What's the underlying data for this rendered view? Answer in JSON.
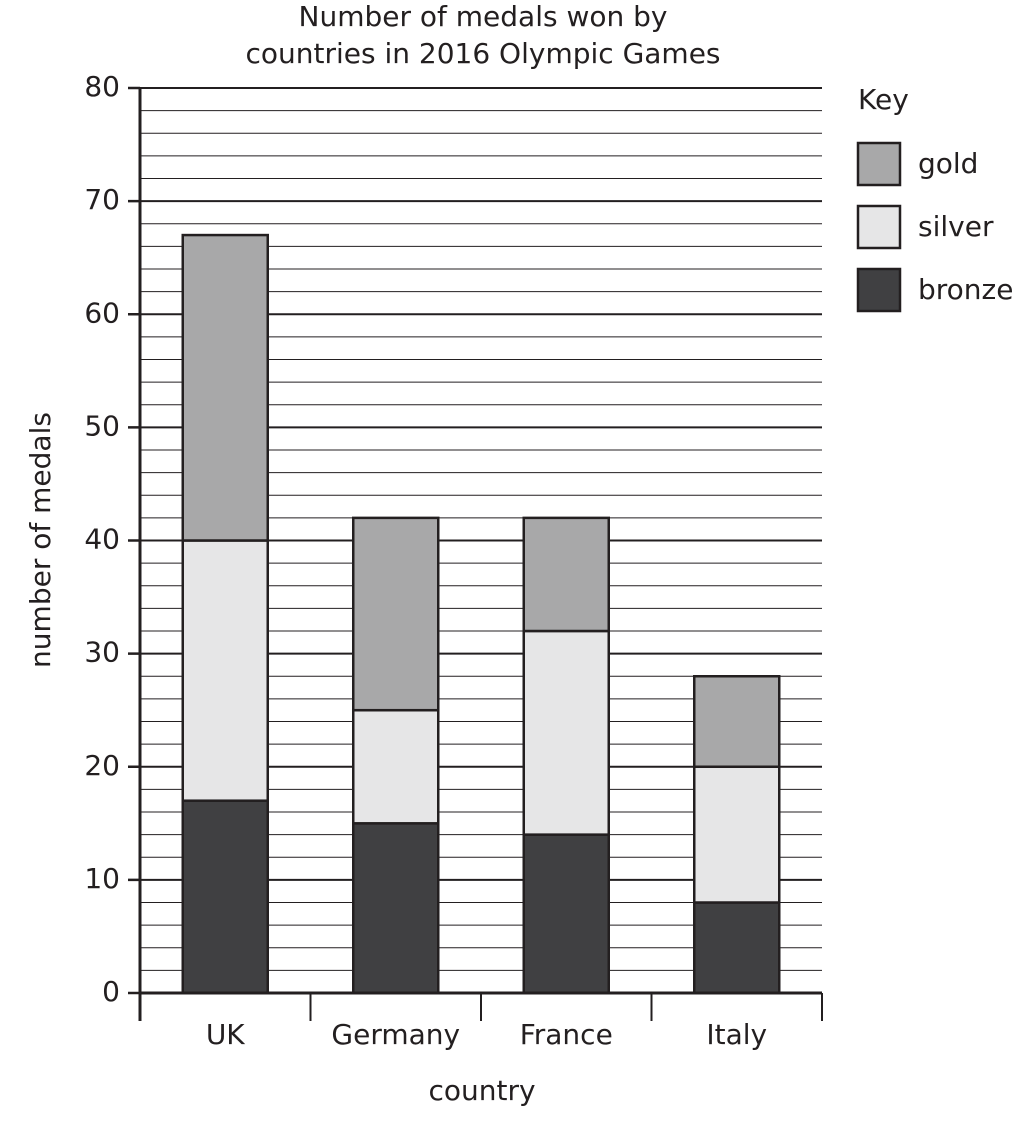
{
  "chart_data": {
    "type": "stacked_bar",
    "title": [
      "Number of medals won by",
      "countries in 2016 Olympic Games"
    ],
    "x_label": "country",
    "y_label": "number of medals",
    "categories": [
      "UK",
      "Germany",
      "France",
      "Italy"
    ],
    "series": [
      {
        "name": "gold",
        "color": "#a8a8a9",
        "values": [
          27,
          17,
          10,
          8
        ]
      },
      {
        "name": "silver",
        "color": "#e6e6e7",
        "values": [
          23,
          10,
          18,
          12
        ]
      },
      {
        "name": "bronze",
        "color": "#404042",
        "values": [
          17,
          15,
          14,
          8
        ]
      }
    ],
    "legend_title": "Key",
    "ylim": [
      0,
      80
    ],
    "yticks": [
      0,
      10,
      20,
      30,
      40,
      50,
      60,
      70,
      80
    ],
    "grid": true,
    "legend_position": "right"
  }
}
